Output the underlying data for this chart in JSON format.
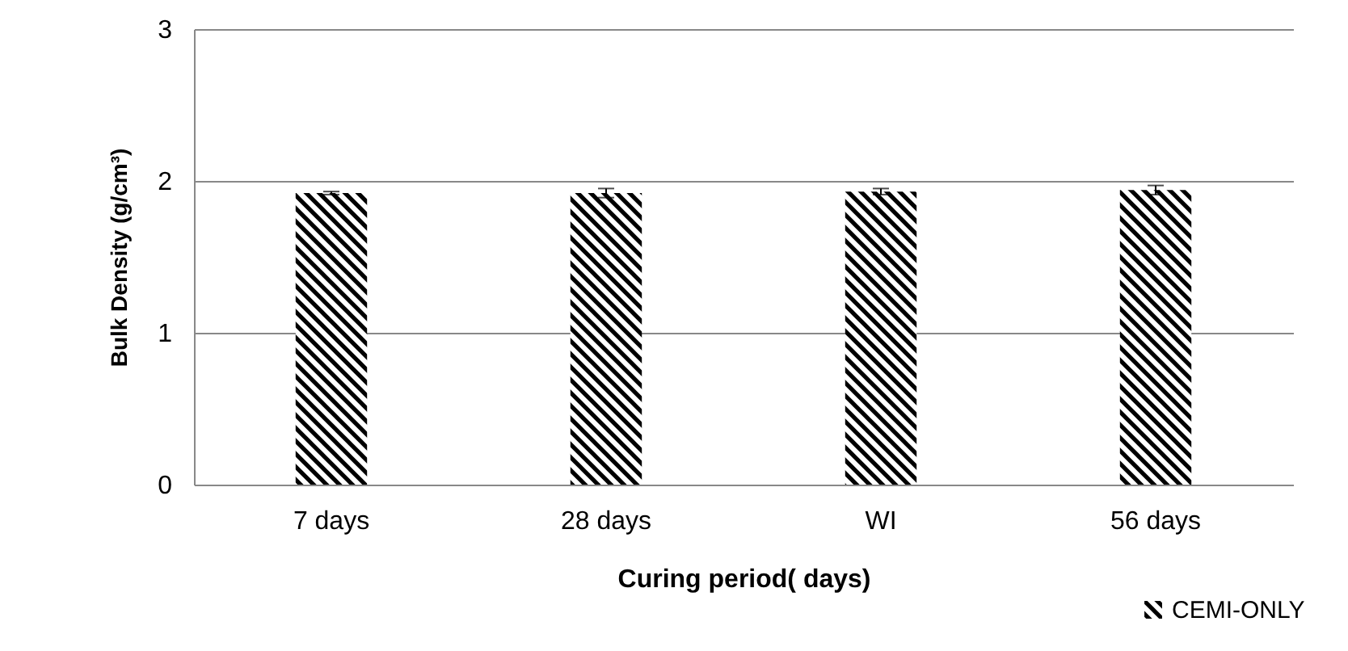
{
  "chart_data": {
    "type": "bar",
    "xlabel": "Curing period( days)",
    "ylabel": "Bulk Density (g/cm³)",
    "categories": [
      "7 days",
      "28 days",
      "WI",
      "56 days"
    ],
    "series": [
      {
        "name": "CEMI-ONLY",
        "color": "#000000",
        "values": [
          1.92,
          1.92,
          1.93,
          1.94
        ],
        "errors": [
          0.01,
          0.03,
          0.02,
          0.03
        ]
      }
    ],
    "ylim": [
      0,
      3
    ],
    "yticks": [
      0,
      1,
      2,
      3
    ],
    "grid": "y",
    "legend": "bottom right"
  }
}
